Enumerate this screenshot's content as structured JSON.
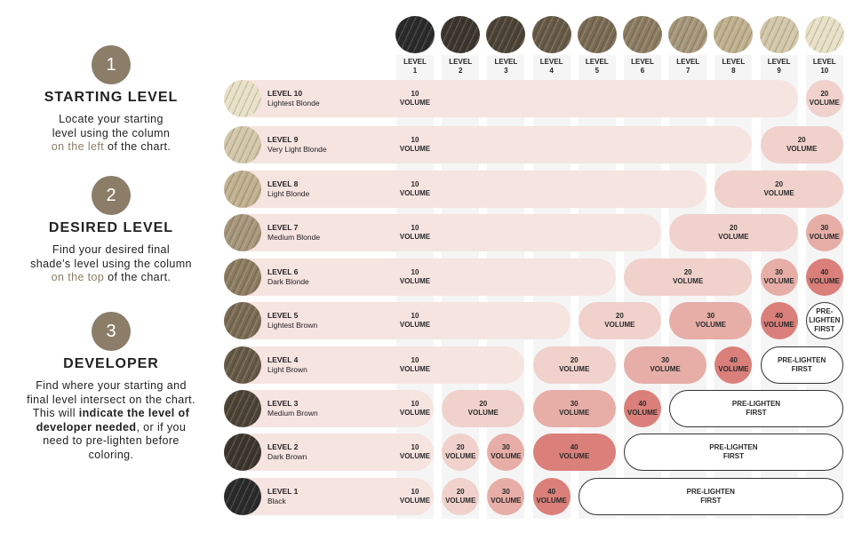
{
  "steps": [
    {
      "number": "1",
      "title": "STARTING LEVEL",
      "body": [
        {
          "text": "Locate your starting"
        },
        {
          "text": "level using the column"
        },
        {
          "parts": [
            {
              "t": "on the left",
              "style": "accent"
            },
            {
              "t": " of the chart."
            }
          ]
        }
      ]
    },
    {
      "number": "2",
      "title": "DESIRED LEVEL",
      "body": [
        {
          "text": "Find your desired final"
        },
        {
          "text": "shade's level using the column"
        },
        {
          "parts": [
            {
              "t": "on the top",
              "style": "accent"
            },
            {
              "t": " of the chart."
            }
          ]
        }
      ]
    },
    {
      "number": "3",
      "title": "DEVELOPER",
      "body": [
        {
          "text": "Find where your starting and"
        },
        {
          "text": "final level intersect on the chart."
        },
        {
          "parts": [
            {
              "t": "This will "
            },
            {
              "t": "indicate the level of",
              "style": "strong"
            }
          ]
        },
        {
          "parts": [
            {
              "t": "developer needed",
              "style": "strong"
            },
            {
              "t": ", or if you"
            }
          ]
        },
        {
          "text": "need to pre-lighten before"
        },
        {
          "text": "coloring."
        }
      ]
    }
  ],
  "colors": {
    "step_accent": "#8b7d68",
    "vol10": "#f6e4e1",
    "vol20": "#f0d1cc",
    "vol30": "#e6aea7",
    "vol40": "#da7f7a",
    "prelighten": "#ffffff"
  },
  "columns": [
    {
      "line1": "LEVEL",
      "line2": "1",
      "hair": "#2b2b2b"
    },
    {
      "line1": "LEVEL",
      "line2": "2",
      "hair": "#3d362e"
    },
    {
      "line1": "LEVEL",
      "line2": "3",
      "hair": "#4d4436"
    },
    {
      "line1": "LEVEL",
      "line2": "4",
      "hair": "#675a47"
    },
    {
      "line1": "LEVEL",
      "line2": "5",
      "hair": "#7a6b54"
    },
    {
      "line1": "LEVEL",
      "line2": "6",
      "hair": "#8c7c61"
    },
    {
      "line1": "LEVEL",
      "line2": "7",
      "hair": "#a5967a"
    },
    {
      "line1": "LEVEL",
      "line2": "8",
      "hair": "#bfb08e"
    },
    {
      "line1": "LEVEL",
      "line2": "9",
      "hair": "#d2c6a8"
    },
    {
      "line1": "LEVEL",
      "line2": "10",
      "hair": "#e8e0c6"
    }
  ],
  "rows": [
    {
      "level": "LEVEL 10",
      "name": "Lightest Blonde",
      "hair": "#e8e0c6",
      "segments": [
        {
          "from": 1,
          "to": 9,
          "kind": "vol10",
          "l1": "10",
          "l2": "VOLUME"
        },
        {
          "from": 10,
          "to": 10,
          "kind": "vol20",
          "l1": "20",
          "l2": "VOLUME"
        }
      ]
    },
    {
      "level": "LEVEL 9",
      "name": "Very Light Blonde",
      "hair": "#d2c6a8",
      "segments": [
        {
          "from": 1,
          "to": 8,
          "kind": "vol10",
          "l1": "10",
          "l2": "VOLUME"
        },
        {
          "from": 9,
          "to": 10,
          "kind": "vol20",
          "l1": "20",
          "l2": "VOLUME"
        }
      ]
    },
    {
      "level": "LEVEL 8",
      "name": "Light Blonde",
      "hair": "#bfb08e",
      "segments": [
        {
          "from": 1,
          "to": 7,
          "kind": "vol10",
          "l1": "10",
          "l2": "VOLUME"
        },
        {
          "from": 8,
          "to": 10,
          "kind": "vol20",
          "l1": "20",
          "l2": "VOLUME"
        }
      ]
    },
    {
      "level": "LEVEL 7",
      "name": "Medium Blonde",
      "hair": "#a5967a",
      "segments": [
        {
          "from": 1,
          "to": 6,
          "kind": "vol10",
          "l1": "10",
          "l2": "VOLUME"
        },
        {
          "from": 7,
          "to": 9,
          "kind": "vol20",
          "l1": "20",
          "l2": "VOLUME"
        },
        {
          "from": 10,
          "to": 10,
          "kind": "vol30",
          "l1": "30",
          "l2": "VOLUME"
        }
      ]
    },
    {
      "level": "LEVEL 6",
      "name": "Dark Blonde",
      "hair": "#8c7c61",
      "segments": [
        {
          "from": 1,
          "to": 5,
          "kind": "vol10",
          "l1": "10",
          "l2": "VOLUME"
        },
        {
          "from": 6,
          "to": 8,
          "kind": "vol20",
          "l1": "20",
          "l2": "VOLUME"
        },
        {
          "from": 9,
          "to": 9,
          "kind": "vol30",
          "l1": "30",
          "l2": "VOLUME"
        },
        {
          "from": 10,
          "to": 10,
          "kind": "vol40",
          "l1": "40",
          "l2": "VOLUME"
        }
      ]
    },
    {
      "level": "LEVEL 5",
      "name": "Lightest Brown",
      "hair": "#7a6b54",
      "segments": [
        {
          "from": 1,
          "to": 4,
          "kind": "vol10",
          "l1": "10",
          "l2": "VOLUME"
        },
        {
          "from": 5,
          "to": 6,
          "kind": "vol20",
          "l1": "20",
          "l2": "VOLUME"
        },
        {
          "from": 7,
          "to": 8,
          "kind": "vol30",
          "l1": "30",
          "l2": "VOLUME"
        },
        {
          "from": 9,
          "to": 9,
          "kind": "vol40",
          "l1": "40",
          "l2": "VOLUME"
        },
        {
          "from": 10,
          "to": 10,
          "kind": "prelighten",
          "l1": "PRE-",
          "l2": "LIGHTEN",
          "l3": "FIRST"
        }
      ]
    },
    {
      "level": "LEVEL 4",
      "name": "Light Brown",
      "hair": "#675a47",
      "segments": [
        {
          "from": 1,
          "to": 3,
          "kind": "vol10",
          "l1": "10",
          "l2": "VOLUME"
        },
        {
          "from": 4,
          "to": 5,
          "kind": "vol20",
          "l1": "20",
          "l2": "VOLUME"
        },
        {
          "from": 6,
          "to": 7,
          "kind": "vol30",
          "l1": "30",
          "l2": "VOLUME"
        },
        {
          "from": 8,
          "to": 8,
          "kind": "vol40",
          "l1": "40",
          "l2": "VOLUME"
        },
        {
          "from": 9,
          "to": 10,
          "kind": "prelighten",
          "l1": "PRE-LIGHTEN",
          "l2": "FIRST"
        }
      ]
    },
    {
      "level": "LEVEL 3",
      "name": "Medium Brown",
      "hair": "#4d4436",
      "segments": [
        {
          "from": 1,
          "to": 1,
          "kind": "vol10",
          "l1": "10",
          "l2": "VOLUME"
        },
        {
          "from": 2,
          "to": 3,
          "kind": "vol20",
          "l1": "20",
          "l2": "VOLUME"
        },
        {
          "from": 4,
          "to": 5,
          "kind": "vol30",
          "l1": "30",
          "l2": "VOLUME"
        },
        {
          "from": 6,
          "to": 6,
          "kind": "vol40",
          "l1": "40",
          "l2": "VOLUME"
        },
        {
          "from": 7,
          "to": 10,
          "kind": "prelighten",
          "l1": "PRE-LIGHTEN",
          "l2": "FIRST"
        }
      ]
    },
    {
      "level": "LEVEL 2",
      "name": "Dark Brown",
      "hair": "#3d362e",
      "segments": [
        {
          "from": 1,
          "to": 1,
          "kind": "vol10",
          "l1": "10",
          "l2": "VOLUME"
        },
        {
          "from": 2,
          "to": 2,
          "kind": "vol20",
          "l1": "20",
          "l2": "VOLUME"
        },
        {
          "from": 3,
          "to": 3,
          "kind": "vol30",
          "l1": "30",
          "l2": "VOLUME"
        },
        {
          "from": 4,
          "to": 5,
          "kind": "vol40",
          "l1": "40",
          "l2": "VOLUME"
        },
        {
          "from": 6,
          "to": 10,
          "kind": "prelighten",
          "l1": "PRE-LIGHTEN",
          "l2": "FIRST"
        }
      ]
    },
    {
      "level": "LEVEL 1",
      "name": "Black",
      "hair": "#2b2b2b",
      "segments": [
        {
          "from": 1,
          "to": 1,
          "kind": "vol10",
          "l1": "10",
          "l2": "VOLUME"
        },
        {
          "from": 2,
          "to": 2,
          "kind": "vol20",
          "l1": "20",
          "l2": "VOLUME"
        },
        {
          "from": 3,
          "to": 3,
          "kind": "vol30",
          "l1": "30",
          "l2": "VOLUME"
        },
        {
          "from": 4,
          "to": 4,
          "kind": "vol40",
          "l1": "40",
          "l2": "VOLUME"
        },
        {
          "from": 5,
          "to": 10,
          "kind": "prelighten",
          "l1": "PRE-LIGHTEN",
          "l2": "FIRST"
        }
      ]
    }
  ]
}
